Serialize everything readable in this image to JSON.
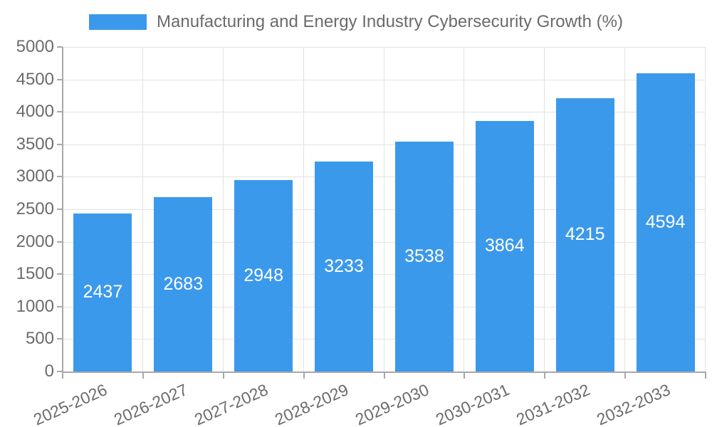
{
  "chart_data": {
    "type": "bar",
    "legend_label": "Manufacturing and Energy Industry Cybersecurity Growth (%)",
    "legend_position": "top",
    "categories": [
      "2025-2026",
      "2026-2027",
      "2027-2028",
      "2028-2029",
      "2029-2030",
      "2030-2031",
      "2031-2032",
      "2032-2033"
    ],
    "values": [
      2437,
      2683,
      2948,
      3233,
      3538,
      3864,
      4215,
      4594
    ],
    "bar_value_labels": [
      "2437",
      "2683",
      "2948",
      "3233",
      "3538",
      "3864",
      "4215",
      "4594"
    ],
    "ylim": [
      0,
      5000
    ],
    "ytick_step": 500,
    "yticks": [
      0,
      500,
      1000,
      1500,
      2000,
      2500,
      3000,
      3500,
      4000,
      4500,
      5000
    ],
    "grid": true,
    "colors": {
      "bar_fill": "#3b99ec",
      "bar_label_text": "#ffffff",
      "axis_text": "#6b6b6b",
      "legend_text": "#6b6b6b",
      "gridline": "#e3e3e3",
      "axis_line": "#a8a8a8",
      "background": "#ffffff"
    }
  }
}
